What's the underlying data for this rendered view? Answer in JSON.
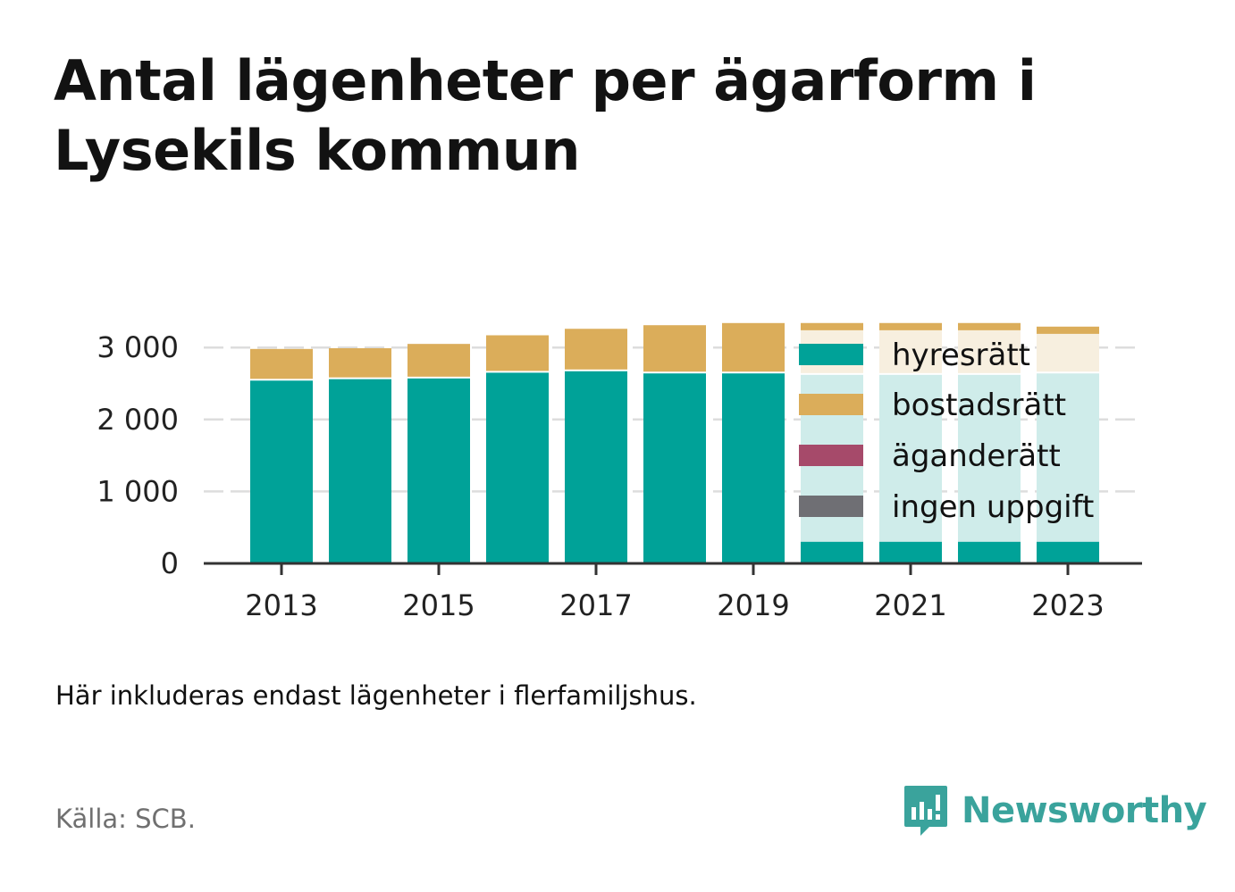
{
  "title": "Antal lägenheter per ägarform i Lysekils kommun",
  "note": "Här inkluderas endast lägenheter i flerfamiljshus.",
  "source": "Källa: SCB.",
  "brand": "Newsworthy",
  "colors": {
    "hyresratt": "#00a298",
    "bostadsratt": "#dbad5a",
    "aganderatt": "#a64a6a",
    "ingen_uppgift": "#6f6f74",
    "hyresratt_faded": "#cfecea",
    "bostadsratt_faded": "#f7efdf",
    "brand": "#3aa39c"
  },
  "chart_data": {
    "type": "bar",
    "stacked": true,
    "categories": [
      "2013",
      "2014",
      "2015",
      "2016",
      "2017",
      "2018",
      "2019",
      "2020",
      "2021",
      "2022",
      "2023"
    ],
    "series": [
      {
        "name": "hyresrätt",
        "color_key": "hyresratt",
        "faded_color_key": "hyresratt_faded",
        "values": [
          2540,
          2560,
          2570,
          2650,
          2670,
          2640,
          2640,
          2620,
          2620,
          2620,
          2640
        ]
      },
      {
        "name": "bostadsrätt",
        "color_key": "bostadsratt",
        "faded_color_key": "bostadsratt_faded",
        "values": [
          440,
          430,
          480,
          520,
          590,
          670,
          700,
          720,
          720,
          720,
          650
        ]
      },
      {
        "name": "äganderätt",
        "color_key": "aganderatt",
        "values": [
          0,
          0,
          0,
          0,
          0,
          0,
          0,
          0,
          0,
          0,
          0
        ]
      },
      {
        "name": "ingen uppgift",
        "color_key": "ingen_uppgift",
        "values": [
          0,
          0,
          0,
          0,
          0,
          0,
          0,
          0,
          0,
          0,
          0
        ]
      }
    ],
    "legend_covered_from_index": 7,
    "bottom_solid_value": 300,
    "top_solid_value": 100,
    "x_tick_labels": [
      "2013",
      "2015",
      "2017",
      "2019",
      "2021",
      "2023"
    ],
    "y_ticks": [
      0,
      1000,
      2000,
      3000
    ],
    "y_tick_labels": [
      "0",
      "1 000",
      "2 000",
      "3 000"
    ],
    "ylim": [
      0,
      3450
    ],
    "grid": true,
    "legend_position": "right-inside"
  }
}
